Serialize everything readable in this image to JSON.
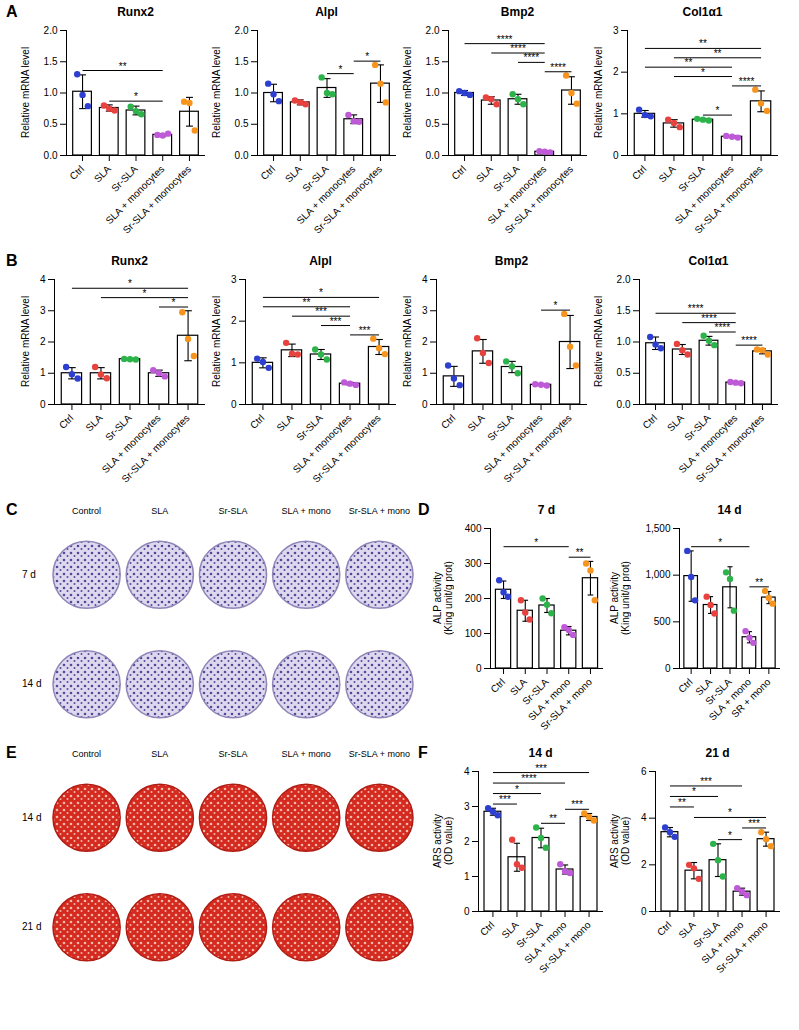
{
  "chart_data": [
    {
      "panel": "A",
      "type": "bar",
      "title": "Runx2",
      "ylabel": "Relative mRNA level",
      "categories": [
        "Ctrl",
        "SLA",
        "Sr-SLA",
        "SLA + monocytes",
        "Sr-SLA + monocytes"
      ],
      "colors": [
        "#2d3fd1",
        "#e8423f",
        "#2cb34a",
        "#be5ad8",
        "#f7941d"
      ],
      "values": [
        1.02,
        0.76,
        0.72,
        0.33,
        0.7
      ],
      "errors": [
        0.27,
        0.05,
        0.07,
        0.02,
        0.23
      ],
      "points": [
        [
          1.3,
          0.97,
          0.79
        ],
        [
          0.8,
          0.75,
          0.72
        ],
        [
          0.78,
          0.71,
          0.66
        ],
        [
          0.33,
          0.32,
          0.35
        ],
        [
          0.86,
          0.84,
          0.4
        ]
      ],
      "ylim": [
        0,
        2
      ],
      "yticks": [
        {
          "value": 0,
          "label": "0.0"
        },
        0.5,
        {
          "value": 1,
          "label": "1.0"
        },
        1.5,
        {
          "value": 2,
          "label": "2.0"
        }
      ],
      "annotations": [
        {
          "from": "SLA",
          "to": "SLA + monocytes",
          "label": "*"
        },
        {
          "from": "Ctrl",
          "to": "SLA + monocytes",
          "label": "**"
        }
      ]
    },
    {
      "panel": "A",
      "type": "bar",
      "title": "Alpl",
      "ylabel": "Relative mRNA level",
      "categories": [
        "Ctrl",
        "SLA",
        "Sr-SLA",
        "SLA + monocytes",
        "Sr-SLA + monocytes"
      ],
      "colors": [
        "#2d3fd1",
        "#e8423f",
        "#2cb34a",
        "#be5ad8",
        "#f7941d"
      ],
      "values": [
        1.0,
        0.85,
        1.08,
        0.58,
        1.15
      ],
      "errors": [
        0.14,
        0.04,
        0.15,
        0.07,
        0.3
      ],
      "points": [
        [
          1.15,
          0.98,
          0.87
        ],
        [
          0.88,
          0.85,
          0.82
        ],
        [
          1.25,
          1.0,
          0.98
        ],
        [
          0.65,
          0.55,
          0.54
        ],
        [
          1.45,
          1.15,
          0.85
        ]
      ],
      "ylim": [
        0,
        2
      ],
      "yticks": [
        {
          "value": 0,
          "label": "0.0"
        },
        0.5,
        {
          "value": 1,
          "label": "1.0"
        },
        1.5,
        {
          "value": 2,
          "label": "2.0"
        }
      ],
      "annotations": [
        {
          "from": "Sr-SLA",
          "to": "SLA + monocytes",
          "label": "*"
        },
        {
          "from": "SLA + monocytes",
          "to": "Sr-SLA + monocytes",
          "label": "*"
        }
      ]
    },
    {
      "panel": "A",
      "type": "bar",
      "title": "Bmp2",
      "ylabel": "Relative mRNA level",
      "categories": [
        "Ctrl",
        "SLA",
        "Sr-SLA",
        "SLA + monocytes",
        "Sr-SLA + monocytes"
      ],
      "colors": [
        "#2d3fd1",
        "#e8423f",
        "#2cb34a",
        "#be5ad8",
        "#f7941d"
      ],
      "values": [
        1.0,
        0.88,
        0.9,
        0.06,
        1.04
      ],
      "errors": [
        0.04,
        0.06,
        0.08,
        0.01,
        0.22
      ],
      "points": [
        [
          1.03,
          1.0,
          0.97
        ],
        [
          0.93,
          0.9,
          0.82
        ],
        [
          0.98,
          0.9,
          0.82
        ],
        [
          0.07,
          0.06,
          0.05
        ],
        [
          1.28,
          1.0,
          0.83
        ]
      ],
      "ylim": [
        0,
        2
      ],
      "yticks": [
        {
          "value": 0,
          "label": "0.0"
        },
        0.5,
        {
          "value": 1,
          "label": "1.0"
        },
        1.5,
        {
          "value": 2,
          "label": "2.0"
        }
      ],
      "annotations": [
        {
          "from": "SLA + monocytes",
          "to": "Sr-SLA + monocytes",
          "label": "****"
        },
        {
          "from": "Sr-SLA",
          "to": "SLA + monocytes",
          "label": "****"
        },
        {
          "from": "SLA",
          "to": "SLA + monocytes",
          "label": "****"
        },
        {
          "from": "Ctrl",
          "to": "SLA + monocytes",
          "label": "****"
        }
      ]
    },
    {
      "panel": "A",
      "type": "bar",
      "title": "Col1α1",
      "ylabel": "Relative mRNA level",
      "categories": [
        "Ctrl",
        "SLA",
        "Sr-SLA",
        "SLA + monocytes",
        "Sr-SLA + monocytes"
      ],
      "colors": [
        "#2d3fd1",
        "#e8423f",
        "#2cb34a",
        "#be5ad8",
        "#f7941d"
      ],
      "values": [
        1.0,
        0.77,
        0.86,
        0.45,
        1.3
      ],
      "errors": [
        0.08,
        0.09,
        0.02,
        0.02,
        0.25
      ],
      "points": [
        [
          1.1,
          0.97,
          0.94
        ],
        [
          0.86,
          0.78,
          0.68
        ],
        [
          0.88,
          0.86,
          0.84
        ],
        [
          0.47,
          0.45,
          0.43
        ],
        [
          1.58,
          1.25,
          1.07
        ]
      ],
      "ylim": [
        0,
        3
      ],
      "yticks": [
        0,
        1,
        2,
        3
      ],
      "annotations": [
        {
          "from": "Sr-SLA",
          "to": "SLA + monocytes",
          "label": "*"
        },
        {
          "from": "SLA + monocytes",
          "to": "Sr-SLA + monocytes",
          "label": "****"
        },
        {
          "from": "SLA",
          "to": "SLA + monocytes",
          "label": "*"
        },
        {
          "from": "Ctrl",
          "to": "SLA + monocytes",
          "label": "**"
        },
        {
          "from": "SLA",
          "to": "Sr-SLA + monocytes",
          "label": "**"
        },
        {
          "from": "Ctrl",
          "to": "Sr-SLA + monocytes",
          "label": "**"
        }
      ]
    },
    {
      "panel": "B",
      "type": "bar",
      "title": "Runx2",
      "ylabel": "Relative mRNA level",
      "categories": [
        "Ctrl",
        "SLA",
        "Sr-SLA",
        "SLA + monocytes",
        "Sr-SLA + monocytes"
      ],
      "colors": [
        "#2d3fd1",
        "#e8423f",
        "#2cb34a",
        "#be5ad8",
        "#f7941d"
      ],
      "values": [
        1.0,
        1.0,
        1.45,
        1.0,
        2.2
      ],
      "errors": [
        0.18,
        0.18,
        0.02,
        0.1,
        0.8
      ],
      "points": [
        [
          1.2,
          0.97,
          0.83
        ],
        [
          1.2,
          0.96,
          0.84
        ],
        [
          1.46,
          1.45,
          1.44
        ],
        [
          1.1,
          1.0,
          0.9
        ],
        [
          2.95,
          2.1,
          1.55
        ]
      ],
      "ylim": [
        0,
        4
      ],
      "yticks": [
        0,
        1,
        2,
        3,
        4
      ],
      "annotations": [
        {
          "from": "SLA + monocytes",
          "to": "Sr-SLA + monocytes",
          "label": "*"
        },
        {
          "from": "SLA",
          "to": "Sr-SLA + monocytes",
          "label": "*"
        },
        {
          "from": "Ctrl",
          "to": "Sr-SLA + monocytes",
          "label": "*"
        }
      ]
    },
    {
      "panel": "B",
      "type": "bar",
      "title": "Alpl",
      "ylabel": "Relative mRNA level",
      "categories": [
        "Ctrl",
        "SLA",
        "Sr-SLA",
        "SLA + monocytes",
        "Sr-SLA + monocytes"
      ],
      "colors": [
        "#2d3fd1",
        "#e8423f",
        "#2cb34a",
        "#be5ad8",
        "#f7941d"
      ],
      "values": [
        1.0,
        1.3,
        1.2,
        0.5,
        1.38
      ],
      "errors": [
        0.12,
        0.15,
        0.12,
        0.03,
        0.18
      ],
      "points": [
        [
          1.1,
          1.02,
          0.88
        ],
        [
          1.48,
          1.22,
          1.2
        ],
        [
          1.32,
          1.2,
          1.08
        ],
        [
          0.53,
          0.5,
          0.47
        ],
        [
          1.58,
          1.35,
          1.21
        ]
      ],
      "ylim": [
        0,
        3
      ],
      "yticks": [
        0,
        1,
        2,
        3
      ],
      "annotations": [
        {
          "from": "SLA + monocytes",
          "to": "Sr-SLA + monocytes",
          "label": "***"
        },
        {
          "from": "Sr-SLA",
          "to": "SLA + monocytes",
          "label": "***"
        },
        {
          "from": "SLA",
          "to": "SLA + monocytes",
          "label": "***"
        },
        {
          "from": "Ctrl",
          "to": "SLA + monocytes",
          "label": "**"
        },
        {
          "from": "Ctrl",
          "to": "Sr-SLA + monocytes",
          "label": "*"
        }
      ]
    },
    {
      "panel": "B",
      "type": "bar",
      "title": "Bmp2",
      "ylabel": "Relative mRNA level",
      "categories": [
        "Ctrl",
        "SLA",
        "Sr-SLA",
        "SLA + monocytes",
        "Sr-SLA + monocytes"
      ],
      "colors": [
        "#2d3fd1",
        "#e8423f",
        "#2cb34a",
        "#be5ad8",
        "#f7941d"
      ],
      "values": [
        0.9,
        1.7,
        1.2,
        0.63,
        2.0
      ],
      "errors": [
        0.32,
        0.38,
        0.18,
        0.02,
        0.85
      ],
      "points": [
        [
          1.25,
          0.83,
          0.62
        ],
        [
          2.12,
          1.65,
          1.33
        ],
        [
          1.38,
          1.22,
          1.0
        ],
        [
          0.65,
          0.63,
          0.61
        ],
        [
          2.9,
          1.85,
          1.25
        ]
      ],
      "ylim": [
        0,
        4
      ],
      "yticks": [
        0,
        1,
        2,
        3,
        4
      ],
      "annotations": [
        {
          "from": "SLA + monocytes",
          "to": "Sr-SLA + monocytes",
          "label": "*"
        }
      ]
    },
    {
      "panel": "B",
      "type": "bar",
      "title": "Col1α1",
      "ylabel": "Relative mRNA level",
      "categories": [
        "Ctrl",
        "SLA",
        "Sr-SLA",
        "SLA + monocytes",
        "Sr-SLA + monocytes"
      ],
      "colors": [
        "#2d3fd1",
        "#e8423f",
        "#2cb34a",
        "#be5ad8",
        "#f7941d"
      ],
      "values": [
        0.98,
        0.88,
        1.02,
        0.35,
        0.85
      ],
      "errors": [
        0.1,
        0.08,
        0.07,
        0.01,
        0.04
      ],
      "points": [
        [
          1.08,
          0.96,
          0.9
        ],
        [
          0.97,
          0.87,
          0.8
        ],
        [
          1.1,
          1.02,
          0.95
        ],
        [
          0.36,
          0.35,
          0.34
        ],
        [
          0.88,
          0.87,
          0.8
        ]
      ],
      "ylim": [
        0,
        2
      ],
      "yticks": [
        {
          "value": 0,
          "label": "0.0"
        },
        0.5,
        {
          "value": 1,
          "label": "1.0"
        },
        1.5,
        {
          "value": 2,
          "label": "2.0"
        }
      ],
      "annotations": [
        {
          "from": "SLA + monocytes",
          "to": "Sr-SLA + monocytes",
          "label": "****"
        },
        {
          "from": "Sr-SLA",
          "to": "SLA + monocytes",
          "label": "****"
        },
        {
          "from": "SLA",
          "to": "SLA + monocytes",
          "label": "****"
        },
        {
          "from": "Ctrl",
          "to": "SLA + monocytes",
          "label": "****"
        }
      ]
    },
    {
      "panel": "D",
      "type": "bar",
      "title": "7 d",
      "ylabel": "ALP activity (King unit/g prot)",
      "categories": [
        "Ctrl",
        "SLA",
        "Sr-SLA",
        "SLA + mono",
        "Sr-SLA + mono"
      ],
      "colors": [
        "#2d3fd1",
        "#e8423f",
        "#2cb34a",
        "#be5ad8",
        "#f7941d"
      ],
      "values": [
        225,
        165,
        180,
        108,
        258
      ],
      "errors": [
        25,
        30,
        20,
        12,
        48
      ],
      "points": [
        [
          252,
          218,
          205
        ],
        [
          195,
          160,
          140
        ],
        [
          200,
          182,
          158
        ],
        [
          118,
          110,
          96
        ],
        [
          300,
          280,
          195
        ]
      ],
      "ylim": [
        0,
        400
      ],
      "yticks": [
        0,
        100,
        200,
        300,
        400
      ],
      "annotations": [
        {
          "from": "SLA + mono",
          "to": "Sr-SLA + mono",
          "label": "**"
        },
        {
          "from": "Ctrl",
          "to": "SLA + mono",
          "label": "*"
        }
      ]
    },
    {
      "panel": "D",
      "type": "bar",
      "title": "14 d",
      "ylabel": "ALP activity (King unit/g prot)",
      "categories": [
        "Ctrl",
        "SLA",
        "Sr-SLA",
        "SLA + mono",
        "SR + mono"
      ],
      "colors": [
        "#2d3fd1",
        "#e8423f",
        "#2cb34a",
        "#be5ad8",
        "#f7941d"
      ],
      "values": [
        990,
        680,
        870,
        335,
        760
      ],
      "errors": [
        270,
        90,
        220,
        60,
        65
      ],
      "points": [
        [
          1260,
          980,
          730
        ],
        [
          770,
          680,
          590
        ],
        [
          1030,
          960,
          620
        ],
        [
          400,
          330,
          275
        ],
        [
          830,
          755,
          695
        ]
      ],
      "ylim": [
        0,
        1500
      ],
      "yticks": [
        0,
        500,
        {
          "value": 1000,
          "label": "1,000"
        },
        {
          "value": 1500,
          "label": "1,500"
        }
      ],
      "annotations": [
        {
          "from": "SLA + mono",
          "to": "SR + mono",
          "label": "**"
        },
        {
          "from": "Ctrl",
          "to": "SLA + mono",
          "label": "*"
        }
      ]
    },
    {
      "panel": "F",
      "type": "bar",
      "title": "14 d",
      "ylabel": "ARS activity (OD value)",
      "categories": [
        "Ctrl",
        "SLA",
        "Sr-SLA",
        "SLA + mono",
        "Sr-SLA + mono"
      ],
      "colors": [
        "#2d3fd1",
        "#e8423f",
        "#2cb34a",
        "#be5ad8",
        "#f7941d"
      ],
      "values": [
        2.85,
        1.55,
        2.1,
        1.2,
        2.7
      ],
      "errors": [
        0.1,
        0.4,
        0.28,
        0.13,
        0.1
      ],
      "points": [
        [
          2.95,
          2.85,
          2.75
        ],
        [
          2.05,
          1.35,
          1.25
        ],
        [
          2.4,
          2.1,
          1.82
        ],
        [
          1.35,
          1.15,
          1.1
        ],
        [
          2.8,
          2.7,
          2.6
        ]
      ],
      "ylim": [
        0,
        4
      ],
      "yticks": [
        0,
        1,
        2,
        3,
        4
      ],
      "annotations": [
        {
          "from": "Sr-SLA",
          "to": "SLA + mono",
          "label": "**"
        },
        {
          "from": "SLA + mono",
          "to": "Sr-SLA + mono",
          "label": "***"
        },
        {
          "from": "Ctrl",
          "to": "SLA",
          "label": "***"
        },
        {
          "from": "Ctrl",
          "to": "Sr-SLA",
          "label": "*"
        },
        {
          "from": "Ctrl",
          "to": "SLA + mono",
          "label": "****"
        },
        {
          "from": "Ctrl",
          "to": "Sr-SLA + mono",
          "label": "***"
        }
      ]
    },
    {
      "panel": "F",
      "type": "bar",
      "title": "21 d",
      "ylabel": "ARS activity (OD value)",
      "categories": [
        "Ctrl",
        "SLA",
        "Sr-SLA",
        "SLA + mono",
        "Sr-SLA + mono"
      ],
      "colors": [
        "#2d3fd1",
        "#e8423f",
        "#2cb34a",
        "#be5ad8",
        "#f7941d"
      ],
      "values": [
        3.4,
        1.75,
        2.2,
        0.85,
        3.1
      ],
      "errors": [
        0.2,
        0.35,
        0.7,
        0.15,
        0.3
      ],
      "points": [
        [
          3.6,
          3.4,
          3.2
        ],
        [
          2.0,
          1.85,
          1.4
        ],
        [
          2.9,
          2.2,
          1.5
        ],
        [
          1.0,
          0.85,
          0.7
        ],
        [
          3.4,
          3.1,
          2.8
        ]
      ],
      "ylim": [
        0,
        6
      ],
      "yticks": [
        0,
        2,
        4,
        6
      ],
      "annotations": [
        {
          "from": "Sr-SLA",
          "to": "SLA + mono",
          "label": "*"
        },
        {
          "from": "SLA + mono",
          "to": "Sr-SLA + mono",
          "label": "***"
        },
        {
          "from": "SLA",
          "to": "Sr-SLA + mono",
          "label": "*"
        },
        {
          "from": "Ctrl",
          "to": "SLA",
          "label": "**"
        },
        {
          "from": "Ctrl",
          "to": "Sr-SLA",
          "label": "*"
        },
        {
          "from": "Ctrl",
          "to": "SLA + mono",
          "label": "***"
        }
      ]
    }
  ],
  "images": [
    {
      "panel": "C",
      "columns": [
        "Control",
        "SLA",
        "Sr-SLA",
        "SLA + mono",
        "Sr-SLA + mono"
      ],
      "rows": [
        "7 d",
        "14 d"
      ]
    },
    {
      "panel": "E",
      "columns": [
        "Control",
        "SLA",
        "Sr-SLA",
        "SLA + mono",
        "Sr-SLA + mono"
      ],
      "rows": [
        "14 d",
        "21 d"
      ]
    }
  ]
}
